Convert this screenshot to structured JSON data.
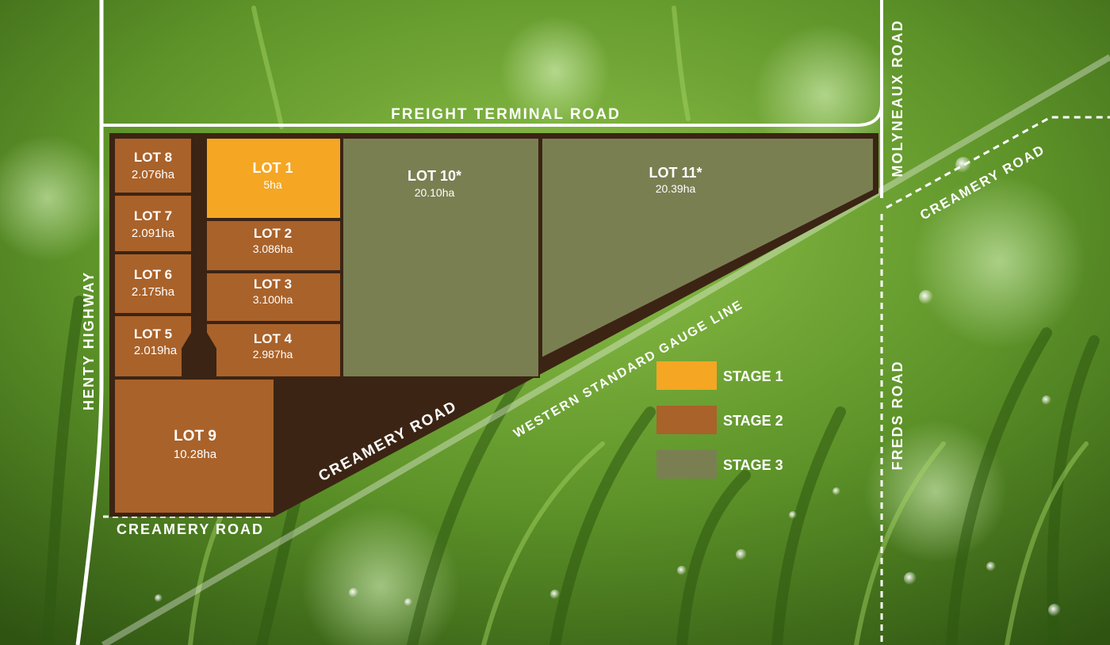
{
  "roads": {
    "freight_terminal": "FREIGHT TERMINAL ROAD",
    "molyneaux": "MOLYNEAUX ROAD",
    "creamery_east": "CREAMERY ROAD",
    "henty": "HENTY HIGHWAY",
    "creamery_diagonal": "CREAMERY ROAD",
    "creamery_south": "CREAMERY ROAD",
    "freds": "FREDS ROAD",
    "rail": "WESTERN STANDARD GAUGE LINE"
  },
  "lots": {
    "lot1": {
      "name": "LOT 1",
      "area": "5ha",
      "stage": "STAGE 1"
    },
    "lot2": {
      "name": "LOT 2",
      "area": "3.086ha",
      "stage": "STAGE 2"
    },
    "lot3": {
      "name": "LOT 3",
      "area": "3.100ha",
      "stage": "STAGE 2"
    },
    "lot4": {
      "name": "LOT 4",
      "area": "2.987ha",
      "stage": "STAGE 2"
    },
    "lot5": {
      "name": "LOT 5",
      "area": "2.019ha",
      "stage": "STAGE 2"
    },
    "lot6": {
      "name": "LOT 6",
      "area": "2.175ha",
      "stage": "STAGE 2"
    },
    "lot7": {
      "name": "LOT 7",
      "area": "2.091ha",
      "stage": "STAGE 2"
    },
    "lot8": {
      "name": "LOT 8",
      "area": "2.076ha",
      "stage": "STAGE 2"
    },
    "lot9": {
      "name": "LOT 9",
      "area": "10.28ha",
      "stage": "STAGE 2"
    },
    "lot10": {
      "name": "LOT 10*",
      "area": "20.10ha",
      "stage": "STAGE 3"
    },
    "lot11": {
      "name": "LOT 11*",
      "area": "20.39ha",
      "stage": "STAGE 3"
    }
  },
  "legend": [
    {
      "label": "STAGE 1",
      "color": "#f5a623"
    },
    {
      "label": "STAGE 2",
      "color": "#a9622a"
    },
    {
      "label": "STAGE 3",
      "color": "#7a7f52"
    }
  ],
  "colors": {
    "stage1": "#f5a623",
    "stage2": "#a9622a",
    "stage3": "#7a7f52",
    "road_reserve": "#3b2414"
  }
}
